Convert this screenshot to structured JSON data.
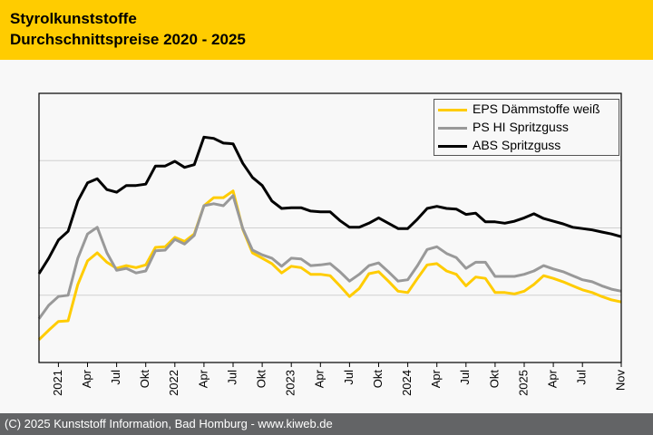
{
  "header": {
    "title_line1": "Styrolkunststoffe",
    "title_line2": "Durchschnittspreise 2020 - 2025",
    "background": "#ffcc00"
  },
  "footer": {
    "text": "(C) 2025 Kunststoff Information, Bad Homburg - www.kiweb.de",
    "background": "#636466"
  },
  "chart_data": {
    "type": "line",
    "title": "Styrolkunststoffe Durchschnittspreise 2020 - 2025",
    "xlabel": "",
    "ylabel": "",
    "y_units_note": "no y-axis tick labels shown; values in relative gridline units (0 = axis, 1..3 = gridlines)",
    "ylim": [
      0,
      4
    ],
    "y_gridlines": [
      1,
      2,
      3
    ],
    "grid": true,
    "legend_position": "top-right",
    "x_start": "Nov 2020",
    "x_end": "Nov 2025",
    "x": [
      "Nov 2020",
      "Dez 2020",
      "Jan 2021",
      "Feb 2021",
      "Mär 2021",
      "Apr 2021",
      "Mai 2021",
      "Jun 2021",
      "Jul 2021",
      "Aug 2021",
      "Sep 2021",
      "Okt 2021",
      "Nov 2021",
      "Dez 2021",
      "Jan 2022",
      "Feb 2022",
      "Mär 2022",
      "Apr 2022",
      "Mai 2022",
      "Jun 2022",
      "Jul 2022",
      "Aug 2022",
      "Sep 2022",
      "Okt 2022",
      "Nov 2022",
      "Dez 2022",
      "Jan 2023",
      "Feb 2023",
      "Mär 2023",
      "Apr 2023",
      "Mai 2023",
      "Jun 2023",
      "Jul 2023",
      "Aug 2023",
      "Sep 2023",
      "Okt 2023",
      "Nov 2023",
      "Dez 2023",
      "Jan 2024",
      "Feb 2024",
      "Mär 2024",
      "Apr 2024",
      "Mai 2024",
      "Jun 2024",
      "Jul 2024",
      "Aug 2024",
      "Sep 2024",
      "Okt 2024",
      "Nov 2024",
      "Dez 2024",
      "Jan 2025",
      "Feb 2025",
      "Mär 2025",
      "Apr 2025",
      "Mai 2025",
      "Jun 2025",
      "Jul 2025",
      "Aug 2025",
      "Sep 2025",
      "Okt 2025",
      "Nov 2025"
    ],
    "ticks": [
      {
        "index": 2,
        "label": "2021"
      },
      {
        "index": 5,
        "label": "Apr"
      },
      {
        "index": 8,
        "label": "Jul"
      },
      {
        "index": 11,
        "label": "Okt"
      },
      {
        "index": 14,
        "label": "2022"
      },
      {
        "index": 17,
        "label": "Apr"
      },
      {
        "index": 20,
        "label": "Jul"
      },
      {
        "index": 23,
        "label": "Okt"
      },
      {
        "index": 26,
        "label": "2023"
      },
      {
        "index": 29,
        "label": "Apr"
      },
      {
        "index": 32,
        "label": "Jul"
      },
      {
        "index": 35,
        "label": "Okt"
      },
      {
        "index": 38,
        "label": "2024"
      },
      {
        "index": 41,
        "label": "Apr"
      },
      {
        "index": 44,
        "label": "Jul"
      },
      {
        "index": 47,
        "label": "Okt"
      },
      {
        "index": 50,
        "label": "2025"
      },
      {
        "index": 53,
        "label": "Apr"
      },
      {
        "index": 56,
        "label": "Jul"
      },
      {
        "index": 60,
        "label": "Nov"
      }
    ],
    "series": [
      {
        "name": "EPS Dämmstoffe weiß",
        "color": "#ffcc00",
        "values": [
          0.34,
          0.48,
          0.61,
          0.62,
          1.16,
          1.51,
          1.63,
          1.49,
          1.4,
          1.44,
          1.41,
          1.45,
          1.71,
          1.72,
          1.86,
          1.8,
          1.91,
          2.33,
          2.45,
          2.45,
          2.55,
          1.98,
          1.63,
          1.55,
          1.47,
          1.33,
          1.43,
          1.41,
          1.31,
          1.31,
          1.29,
          1.14,
          0.98,
          1.1,
          1.32,
          1.35,
          1.21,
          1.06,
          1.04,
          1.25,
          1.45,
          1.47,
          1.36,
          1.31,
          1.14,
          1.27,
          1.25,
          1.04,
          1.04,
          1.02,
          1.06,
          1.16,
          1.29,
          1.25,
          1.2,
          1.14,
          1.08,
          1.04,
          0.98,
          0.93,
          0.9
        ]
      },
      {
        "name": "PS HI Spritzguss",
        "color": "#999999",
        "values": [
          0.65,
          0.85,
          0.98,
          1.0,
          1.55,
          1.91,
          2.01,
          1.63,
          1.37,
          1.4,
          1.33,
          1.36,
          1.66,
          1.67,
          1.83,
          1.76,
          1.89,
          2.33,
          2.36,
          2.33,
          2.48,
          1.99,
          1.67,
          1.6,
          1.55,
          1.43,
          1.55,
          1.54,
          1.44,
          1.45,
          1.47,
          1.35,
          1.21,
          1.31,
          1.44,
          1.48,
          1.35,
          1.21,
          1.23,
          1.44,
          1.68,
          1.72,
          1.62,
          1.56,
          1.4,
          1.49,
          1.49,
          1.28,
          1.28,
          1.28,
          1.31,
          1.36,
          1.44,
          1.39,
          1.35,
          1.29,
          1.23,
          1.2,
          1.14,
          1.09,
          1.06
        ]
      },
      {
        "name": "ABS Spritzguss",
        "color": "#000000",
        "values": [
          1.32,
          1.55,
          1.82,
          1.95,
          2.4,
          2.67,
          2.73,
          2.57,
          2.53,
          2.63,
          2.63,
          2.65,
          2.92,
          2.92,
          2.99,
          2.9,
          2.94,
          3.35,
          3.33,
          3.26,
          3.25,
          2.96,
          2.75,
          2.63,
          2.4,
          2.29,
          2.3,
          2.3,
          2.25,
          2.24,
          2.24,
          2.11,
          2.01,
          2.01,
          2.07,
          2.15,
          2.07,
          1.99,
          1.99,
          2.13,
          2.29,
          2.32,
          2.29,
          2.28,
          2.2,
          2.22,
          2.09,
          2.09,
          2.07,
          2.1,
          2.15,
          2.21,
          2.14,
          2.1,
          2.06,
          2.01,
          1.99,
          1.97,
          1.94,
          1.91,
          1.87
        ]
      }
    ]
  }
}
